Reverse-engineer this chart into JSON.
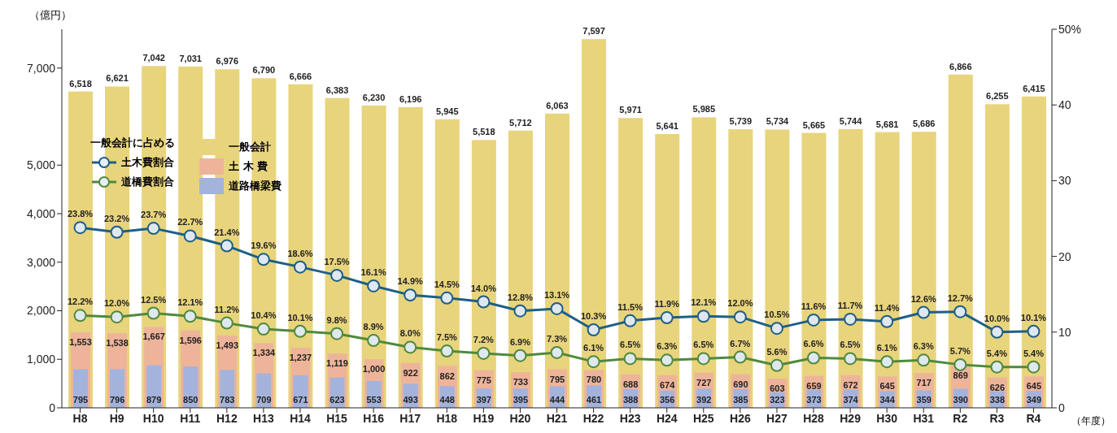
{
  "chart_data": {
    "type": "bar",
    "ylabel": "（億円）",
    "xlabel": "（年度）",
    "legend_title": "一般会計に占める",
    "legend": "top left",
    "marker": "circle",
    "categories": [
      "H8",
      "H9",
      "H10",
      "H11",
      "H12",
      "H13",
      "H14",
      "H15",
      "H16",
      "H17",
      "H18",
      "H19",
      "H20",
      "H21",
      "H22",
      "H23",
      "H24",
      "H25",
      "H26",
      "H27",
      "H28",
      "H29",
      "H30",
      "H31",
      "R2",
      "R3",
      "R4"
    ],
    "ylim": [
      0,
      7800
    ],
    "yticks": [
      0,
      {
        "value": 1000,
        "label": "1,000"
      },
      {
        "value": 2000,
        "label": "2,000"
      },
      {
        "value": 3000,
        "label": "3,000"
      },
      {
        "value": 4000,
        "label": "4,000"
      },
      {
        "value": 5000,
        "label": "5,000"
      },
      {
        "value": 7000,
        "label": "7,000"
      }
    ],
    "y2lim": [
      0,
      50
    ],
    "y2ticks": [
      0,
      10,
      20,
      30,
      40,
      {
        "value": 50,
        "label": "50%"
      }
    ],
    "series": [
      {
        "name": "一般会計",
        "color": "#e8d47c",
        "values": [
          6518,
          6621,
          7042,
          7031,
          6976,
          6790,
          6666,
          6383,
          6230,
          6196,
          5945,
          5518,
          5712,
          6063,
          7597,
          5971,
          5641,
          5985,
          5739,
          5734,
          5665,
          5744,
          5681,
          5686,
          6866,
          6255,
          6415
        ],
        "value_labels": [
          "6,518",
          "6,621",
          "7,042",
          "7,031",
          "6,976",
          "6,790",
          "6,666",
          "6,383",
          "6,230",
          "6,196",
          "5,945",
          "5,518",
          "5,712",
          "6,063",
          "7,597",
          "5,971",
          "5,641",
          "5,985",
          "5,739",
          "5,734",
          "5,665",
          "5,744",
          "5,681",
          "5,686",
          "6,866",
          "6,255",
          "6,415"
        ]
      },
      {
        "name": "土 木 費",
        "color": "#eeb49a",
        "values": [
          1553,
          1538,
          1667,
          1596,
          1493,
          1334,
          1237,
          1119,
          1000,
          922,
          862,
          775,
          733,
          795,
          780,
          688,
          674,
          727,
          690,
          603,
          659,
          672,
          645,
          717,
          869,
          626,
          645
        ],
        "value_labels": [
          "1,553",
          "1,538",
          "1,667",
          "1,596",
          "1,493",
          "1,334",
          "1,237",
          "1,119",
          "1,000",
          "922",
          "862",
          "775",
          "733",
          "795",
          "780",
          "688",
          "674",
          "727",
          "690",
          "603",
          "659",
          "672",
          "645",
          "717",
          "869",
          "626",
          "645"
        ]
      },
      {
        "name": "道路橋梁費",
        "color": "#a3b3dc",
        "values": [
          795,
          796,
          879,
          850,
          783,
          709,
          671,
          623,
          553,
          493,
          448,
          397,
          395,
          444,
          461,
          388,
          356,
          392,
          385,
          323,
          373,
          374,
          344,
          359,
          390,
          338,
          349
        ],
        "value_labels": [
          "795",
          "796",
          "879",
          "850",
          "783",
          "709",
          "671",
          "623",
          "553",
          "493",
          "448",
          "397",
          "395",
          "444",
          "461",
          "388",
          "356",
          "392",
          "385",
          "323",
          "373",
          "374",
          "344",
          "359",
          "390",
          "338",
          "349"
        ]
      },
      {
        "name": "土木費割合",
        "type": "line",
        "axis": "y2",
        "color": "#1e5f86",
        "values": [
          23.8,
          23.2,
          23.7,
          22.7,
          21.4,
          19.6,
          18.6,
          17.5,
          16.1,
          14.9,
          14.5,
          14.0,
          12.8,
          13.1,
          10.3,
          11.5,
          11.9,
          12.1,
          12.0,
          10.5,
          11.6,
          11.7,
          11.4,
          12.6,
          12.7,
          10.0,
          10.1
        ],
        "value_labels": [
          "23.8%",
          "23.2%",
          "23.7%",
          "22.7%",
          "21.4%",
          "19.6%",
          "18.6%",
          "17.5%",
          "16.1%",
          "14.9%",
          "14.5%",
          "14.0%",
          "12.8%",
          "13.1%",
          "10.3%",
          "11.5%",
          "11.9%",
          "12.1%",
          "12.0%",
          "10.5%",
          "11.6%",
          "11.7%",
          "11.4%",
          "12.6%",
          "12.7%",
          "10.0%",
          "10.1%"
        ]
      },
      {
        "name": "道橋費割合",
        "type": "line",
        "axis": "y2",
        "color": "#4f8a3c",
        "values": [
          12.2,
          12.0,
          12.5,
          12.1,
          11.2,
          10.4,
          10.1,
          9.8,
          8.9,
          8.0,
          7.5,
          7.2,
          6.9,
          7.3,
          6.1,
          6.5,
          6.3,
          6.5,
          6.7,
          5.6,
          6.6,
          6.5,
          6.1,
          6.3,
          5.7,
          5.4,
          5.4
        ],
        "value_labels": [
          "12.2%",
          "12.0%",
          "12.5%",
          "12.1%",
          "11.2%",
          "10.4%",
          "10.1%",
          "9.8%",
          "8.9%",
          "8.0%",
          "7.5%",
          "7.2%",
          "6.9%",
          "7.3%",
          "6.1%",
          "6.5%",
          "6.3%",
          "6.5%",
          "6.7%",
          "5.6%",
          "6.6%",
          "6.5%",
          "6.1%",
          "6.3%",
          "5.7%",
          "5.4%",
          "5.4%"
        ]
      }
    ]
  }
}
